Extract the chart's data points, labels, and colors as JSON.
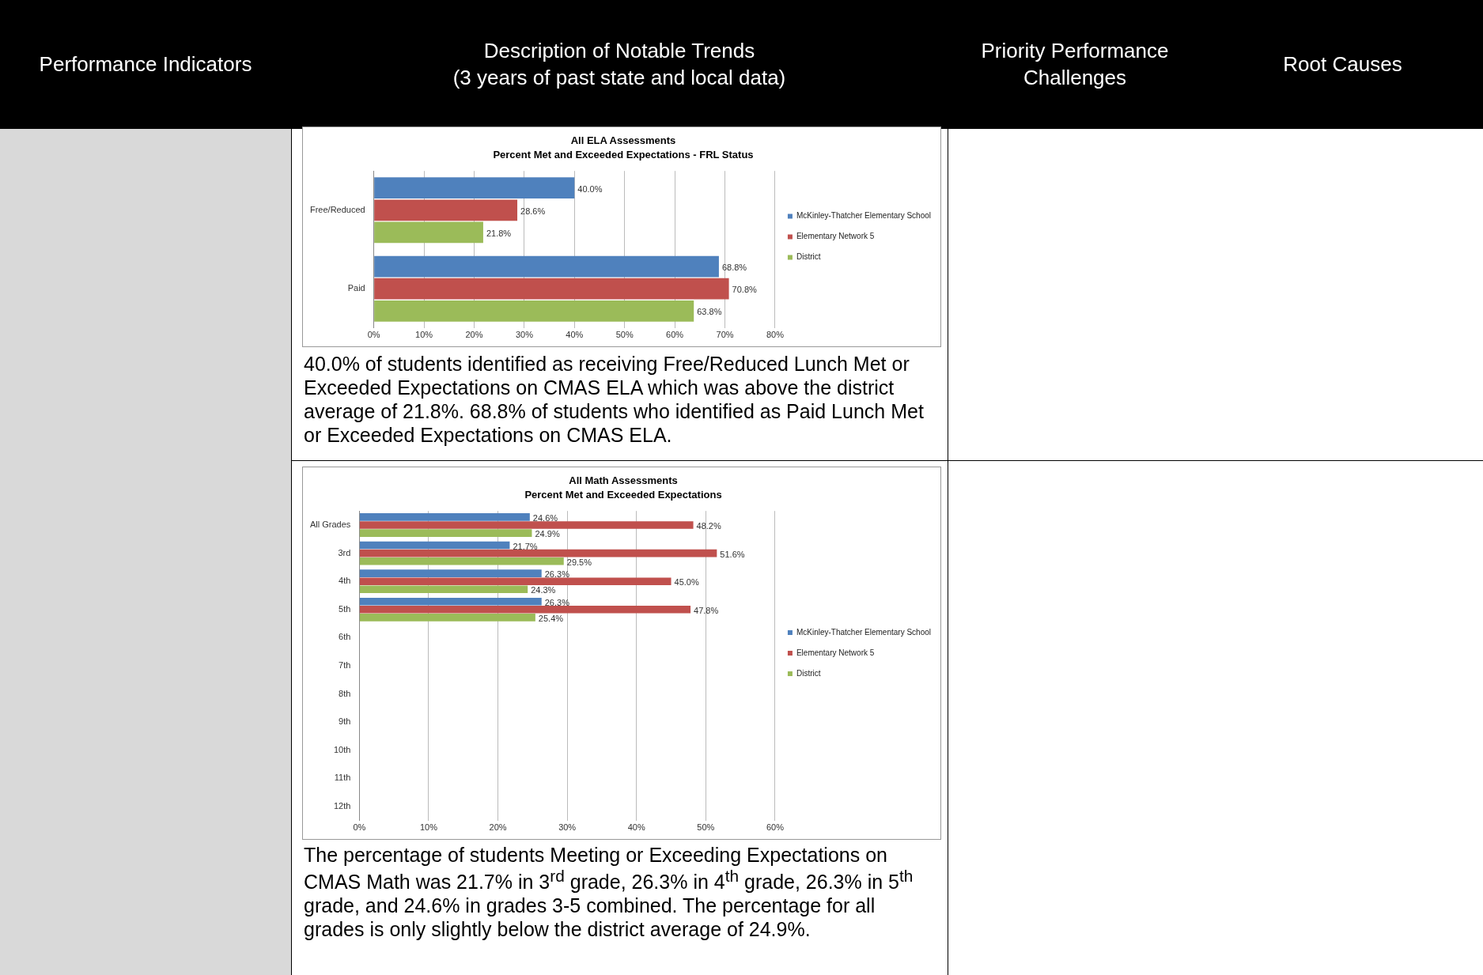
{
  "chart_data": [
    {
      "type": "other",
      "annotations": [
        "Performance Indicators",
        "Description of Notable Trends\n(3 years of past state and local data)",
        "Priority Performance\nChallenges",
        "Root Causes"
      ]
    },
    {
      "type": "bar",
      "orientation": "horizontal",
      "title": "All ELA Assessments",
      "subtitle": "Percent Met and Exceeded Expectations - FRL Status",
      "categories": [
        "Free/Reduced",
        "Paid"
      ],
      "series": [
        {
          "name": "McKinley-Thatcher Elementary School",
          "color": "#4f81bd",
          "values": [
            40.0,
            68.8
          ],
          "value_labels": [
            "40.0%",
            "68.8%"
          ]
        },
        {
          "name": "Elementary Network 5",
          "color": "#c0504d",
          "values": [
            28.6,
            70.8
          ],
          "value_labels": [
            "28.6%",
            "70.8%"
          ]
        },
        {
          "name": "District",
          "color": "#9bbb59",
          "values": [
            21.8,
            63.8
          ],
          "value_labels": [
            "21.8%",
            "63.8%"
          ]
        }
      ],
      "xlim": [
        0,
        80
      ],
      "xticks": [
        {
          "value": 0,
          "label": "0%"
        },
        {
          "value": 10,
          "label": "10%"
        },
        {
          "value": 20,
          "label": "20%"
        },
        {
          "value": 30,
          "label": "30%"
        },
        {
          "value": 40,
          "label": "40%"
        },
        {
          "value": 50,
          "label": "50%"
        },
        {
          "value": 60,
          "label": "60%"
        },
        {
          "value": 70,
          "label": "70%"
        },
        {
          "value": 80,
          "label": "80%"
        }
      ],
      "grid": "x",
      "legend": "right",
      "annotations": [
        "40.0% of students identified as receiving Free/Reduced Lunch Met or Exceeded Expectations on CMAS ELA which was above the district average of 21.8%.  68.8% of students who identified as Paid Lunch Met or Exceeded Expectations on CMAS ELA."
      ]
    },
    {
      "type": "bar",
      "orientation": "horizontal",
      "title": "All Math Assessments",
      "subtitle": "Percent Met and Exceeded Expectations",
      "categories": [
        "All Grades",
        "3rd",
        "4th",
        "5th",
        "6th",
        "7th",
        "8th",
        "9th",
        "10th",
        "11th",
        "12th"
      ],
      "series": [
        {
          "name": "McKinley-Thatcher Elementary School",
          "color": "#4f81bd",
          "values": [
            24.6,
            21.7,
            26.3,
            26.3,
            null,
            null,
            null,
            null,
            null,
            null,
            null
          ],
          "value_labels": [
            "24.6%",
            "21.7%",
            "26.3%",
            "26.3%",
            null,
            null,
            null,
            null,
            null,
            null,
            null
          ]
        },
        {
          "name": "Elementary Network 5",
          "color": "#c0504d",
          "values": [
            48.2,
            51.6,
            45.0,
            47.8,
            null,
            null,
            null,
            null,
            null,
            null,
            null
          ],
          "value_labels": [
            "48.2%",
            "51.6%",
            "45.0%",
            "47.8%",
            null,
            null,
            null,
            null,
            null,
            null,
            null
          ]
        },
        {
          "name": "District",
          "color": "#9bbb59",
          "values": [
            24.9,
            29.5,
            24.3,
            25.4,
            null,
            null,
            null,
            null,
            null,
            null,
            null
          ],
          "value_labels": [
            "24.9%",
            "29.5%",
            "24.3%",
            "25.4%",
            null,
            null,
            null,
            null,
            null,
            null,
            null
          ]
        }
      ],
      "xlim": [
        0,
        60
      ],
      "xticks": [
        {
          "value": 0,
          "label": "0%"
        },
        {
          "value": 10,
          "label": "10%"
        },
        {
          "value": 20,
          "label": "20%"
        },
        {
          "value": 30,
          "label": "30%"
        },
        {
          "value": 40,
          "label": "40%"
        },
        {
          "value": 50,
          "label": "50%"
        },
        {
          "value": 60,
          "label": "60%"
        }
      ],
      "grid": "x",
      "legend": "right",
      "annotations": [
        "The percentage of students Meeting or Exceeding Expectations on CMAS Math was 21.7% in 3$^{rd}$ grade, 26.3% in 4$^{th}$ grade, 26.3% in 5$^{th}$ grade, and 24.6% in grades 3-5 combined.  The percentage for all grades is only slightly below the district average of 24.9%."
      ]
    }
  ]
}
